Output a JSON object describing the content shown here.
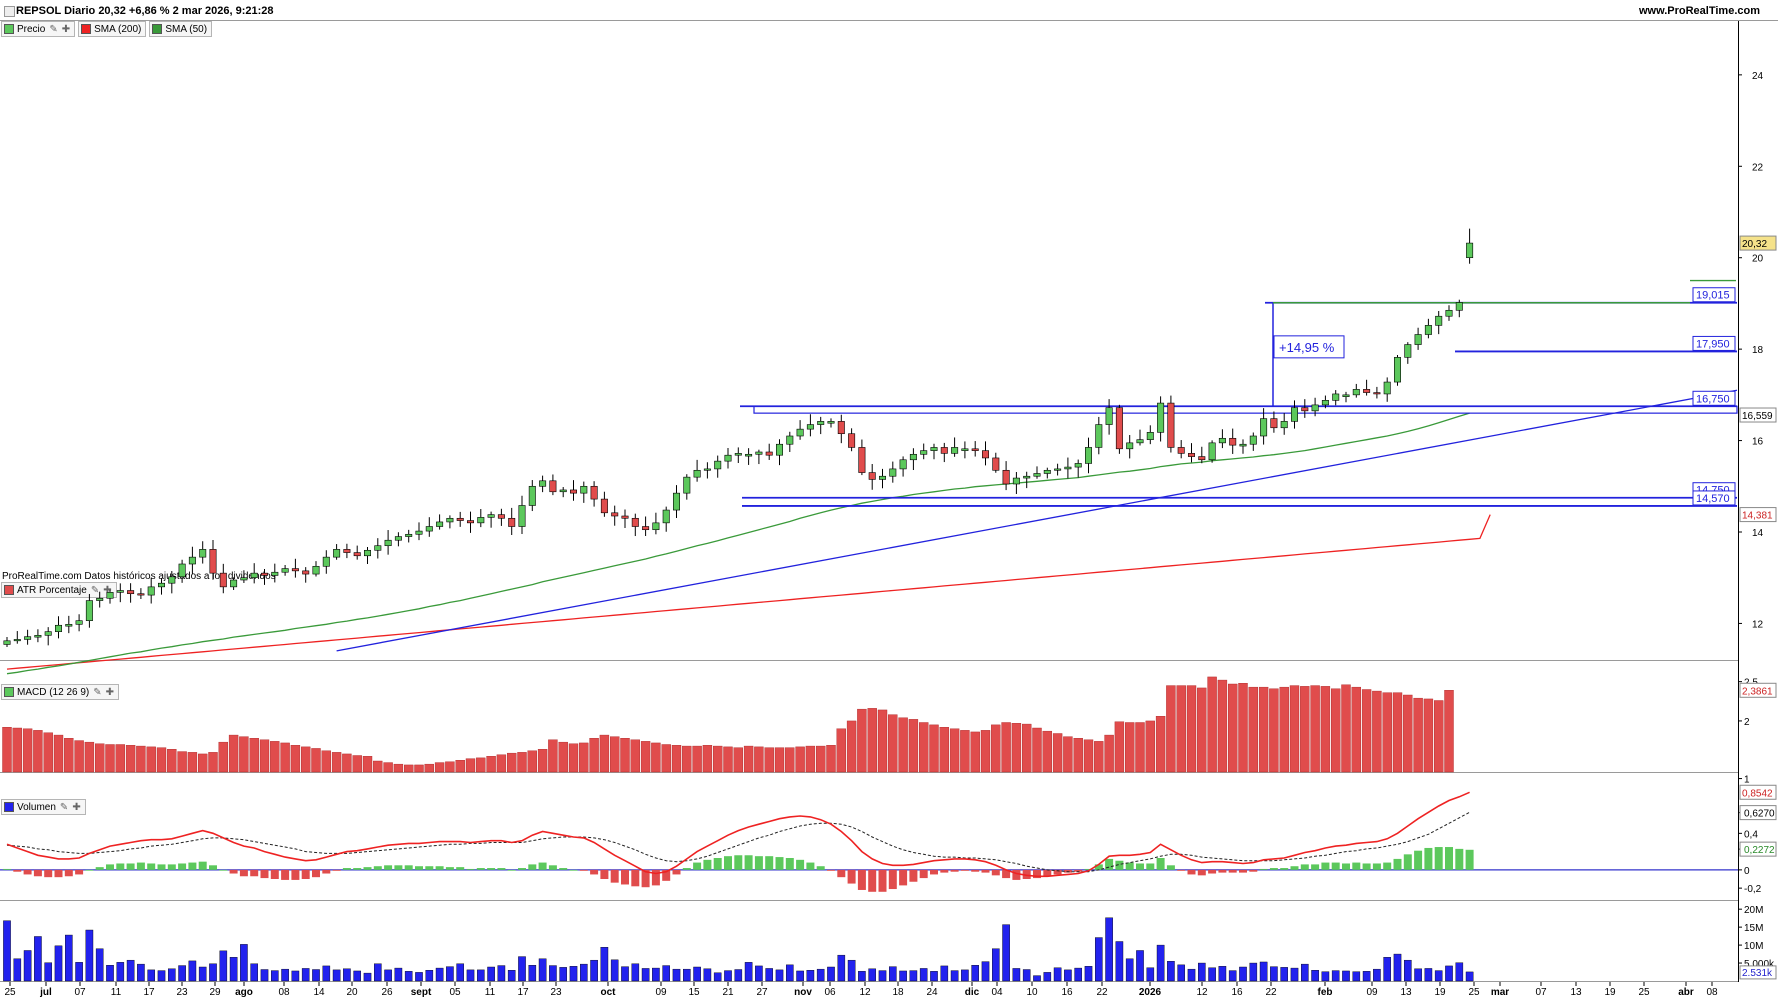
{
  "header": {
    "title": "REPSOL Diario 20,32 +6,86 % 2 mar 2026, 9:21:28",
    "brand": "www.ProRealTime.com"
  },
  "legend": {
    "price": "Precio",
    "sma200": "SMA (200)",
    "sma50": "SMA (50)"
  },
  "note": "ProRealTime.com Datos históricos ajustados a los dividendos",
  "panels": {
    "atr_label": "ATR Porcentaje",
    "macd_label": "MACD (12 26 9)",
    "volume_label": "Volumen"
  },
  "colors": {
    "up": "#5cc85c",
    "down": "#e04c4c",
    "sma200": "#ee2222",
    "sma50": "#3a9a3a",
    "lines": "#2222dd",
    "volume": "#2222ee",
    "macd": "#ee2222"
  },
  "annotation": {
    "pct_change": "+14,95 %"
  },
  "chart_data": {
    "type": "candlestick",
    "symbol": "REPSOL",
    "period": "Diario",
    "price_axis": {
      "ticks": [
        "24",
        "22",
        "20",
        "18",
        "16",
        "14",
        "12"
      ],
      "range": [
        11.2,
        25.2
      ]
    },
    "x_tick_labels": [
      "25",
      "jul",
      "07",
      "11",
      "17",
      "23",
      "29",
      "ago",
      "08",
      "14",
      "20",
      "26",
      "sept",
      "05",
      "11",
      "17",
      "23",
      "oct",
      "09",
      "15",
      "21",
      "27",
      "nov",
      "06",
      "12",
      "18",
      "24",
      "dic",
      "04",
      "10",
      "16",
      "22",
      "2026",
      "12",
      "16",
      "22",
      "feb",
      "09",
      "13",
      "19",
      "25",
      "mar",
      "07",
      "13",
      "19",
      "25",
      "abr",
      "08"
    ],
    "closes": [
      11.62,
      11.65,
      11.71,
      11.74,
      11.82,
      11.96,
      11.98,
      12.06,
      12.5,
      12.55,
      12.68,
      12.72,
      12.65,
      12.62,
      12.8,
      12.88,
      13.02,
      13.3,
      13.45,
      13.62,
      13.1,
      12.8,
      12.95,
      13.0,
      13.1,
      13.05,
      13.12,
      13.2,
      13.15,
      13.08,
      13.25,
      13.45,
      13.62,
      13.55,
      13.48,
      13.6,
      13.7,
      13.82,
      13.9,
      13.95,
      14.02,
      14.12,
      14.22,
      14.3,
      14.25,
      14.2,
      14.32,
      14.38,
      14.3,
      14.12,
      14.58,
      15.0,
      15.12,
      14.88,
      14.92,
      14.85,
      15.0,
      14.72,
      14.42,
      14.35,
      14.3,
      14.12,
      14.05,
      14.2,
      14.48,
      14.85,
      15.2,
      15.35,
      15.38,
      15.55,
      15.68,
      15.72,
      15.7,
      15.75,
      15.68,
      15.92,
      16.1,
      16.25,
      16.35,
      16.42,
      16.42,
      16.15,
      15.85,
      15.3,
      15.15,
      15.22,
      15.38,
      15.58,
      15.7,
      15.78,
      15.85,
      15.72,
      15.85,
      15.82,
      15.78,
      15.62,
      15.35,
      15.05,
      15.18,
      15.22,
      15.28,
      15.35,
      15.38,
      15.42,
      15.5,
      15.85,
      16.35,
      16.72,
      15.82,
      15.95,
      16.02,
      16.18,
      16.82,
      15.85,
      15.72,
      15.65,
      15.58,
      15.95,
      16.05,
      15.9,
      15.92,
      16.1,
      16.48,
      16.28,
      16.42,
      16.72,
      16.65,
      16.78,
      16.88,
      17.02,
      17.0,
      17.12,
      17.05,
      17.02,
      17.28,
      17.82,
      18.1,
      18.32,
      18.52,
      18.72,
      18.85,
      19.02,
      20.32
    ],
    "sma50": [
      10.9,
      10.93,
      10.97,
      11.0,
      11.04,
      11.07,
      11.11,
      11.15,
      11.19,
      11.23,
      11.27,
      11.31,
      11.35,
      11.38,
      11.42,
      11.46,
      11.49,
      11.53,
      11.56,
      11.6,
      11.63,
      11.66,
      11.7,
      11.73,
      11.76,
      11.79,
      11.82,
      11.85,
      11.89,
      11.92,
      11.95,
      11.98,
      12.02,
      12.05,
      12.09,
      12.12,
      12.16,
      12.2,
      12.24,
      12.28,
      12.32,
      12.37,
      12.41,
      12.46,
      12.5,
      12.55,
      12.6,
      12.65,
      12.7,
      12.75,
      12.8,
      12.85,
      12.91,
      12.96,
      13.01,
      13.06,
      13.11,
      13.16,
      13.21,
      13.26,
      13.31,
      13.36,
      13.41,
      13.47,
      13.52,
      13.58,
      13.64,
      13.7,
      13.75,
      13.81,
      13.87,
      13.93,
      13.99,
      14.05,
      14.11,
      14.17,
      14.23,
      14.3,
      14.36,
      14.42,
      14.48,
      14.53,
      14.58,
      14.63,
      14.67,
      14.71,
      14.75,
      14.78,
      14.82,
      14.85,
      14.88,
      14.91,
      14.94,
      14.96,
      14.99,
      15.01,
      15.03,
      15.05,
      15.07,
      15.09,
      15.11,
      15.13,
      15.15,
      15.17,
      15.19,
      15.22,
      15.25,
      15.28,
      15.31,
      15.33,
      15.36,
      15.39,
      15.43,
      15.46,
      15.49,
      15.51,
      15.53,
      15.56,
      15.58,
      15.6,
      15.62,
      15.64,
      15.67,
      15.69,
      15.72,
      15.75,
      15.78,
      15.82,
      15.86,
      15.9,
      15.94,
      15.98,
      16.02,
      16.06,
      16.1,
      16.15,
      16.2,
      16.26,
      16.32,
      16.39,
      16.46,
      16.53,
      16.6
    ],
    "sma200": [
      11.0,
      11.02,
      11.04,
      11.06,
      11.08,
      11.1,
      11.12,
      11.14,
      11.16,
      11.18,
      11.2,
      11.22,
      11.24,
      11.26,
      11.28,
      11.3,
      11.32,
      11.34,
      11.36,
      11.38,
      11.4,
      11.42,
      11.44,
      11.46,
      11.48,
      11.5,
      11.52,
      11.54,
      11.56,
      11.58,
      11.6,
      11.62,
      11.64,
      11.66,
      11.68,
      11.7,
      11.72,
      11.74,
      11.76,
      11.78,
      11.8,
      11.82,
      11.84,
      11.86,
      11.88,
      11.9,
      11.92,
      11.94,
      11.96,
      11.98,
      12.0,
      12.02,
      12.04,
      12.06,
      12.08,
      12.1,
      12.12,
      12.14,
      12.16,
      12.18,
      12.2,
      12.22,
      12.24,
      12.26,
      12.28,
      12.3,
      12.32,
      12.34,
      12.36,
      12.38,
      12.4,
      12.42,
      12.44,
      12.46,
      12.48,
      12.5,
      12.52,
      12.54,
      12.56,
      12.58,
      12.6,
      12.62,
      12.64,
      12.66,
      12.68,
      12.7,
      12.72,
      12.74,
      12.76,
      12.78,
      12.8,
      12.82,
      12.84,
      12.86,
      12.88,
      12.9,
      12.92,
      12.94,
      12.96,
      12.98,
      13.0,
      13.02,
      13.04,
      13.06,
      13.08,
      13.1,
      13.12,
      13.14,
      13.16,
      13.18,
      13.2,
      13.22,
      13.24,
      13.26,
      13.28,
      13.3,
      13.32,
      13.34,
      13.36,
      13.38,
      13.4,
      13.42,
      13.44,
      13.46,
      13.48,
      13.5,
      13.52,
      13.54,
      13.56,
      13.58,
      13.6,
      13.62,
      13.64,
      13.66,
      13.68,
      13.7,
      13.72,
      13.74,
      13.76,
      13.78,
      13.8,
      13.82,
      13.84,
      13.86,
      14.381
    ],
    "horizontal_levels": [
      {
        "value": 19.015,
        "label": "19,015"
      },
      {
        "value": 17.95,
        "label": "17,950"
      },
      {
        "value": 16.75,
        "label": "16,750"
      },
      {
        "value": 14.75,
        "label": "14,750"
      },
      {
        "value": 14.57,
        "label": "14,570"
      }
    ],
    "resistance_box": [
      16.6,
      16.75
    ],
    "trendline": [
      [
        11.4,
        17.1
      ]
    ],
    "price_tags": [
      {
        "value": 20.32,
        "label": "20,32",
        "color": "#f5e28a"
      },
      {
        "value": 16.559,
        "label": "16,559",
        "color": "#ffffff"
      },
      {
        "value": 14.381,
        "label": "14,381",
        "color": "#ffffff"
      }
    ],
    "atr": {
      "axis_ticks": [
        "2,5",
        "2"
      ],
      "range": [
        1.35,
        2.75
      ],
      "last_label": "2,3861",
      "values": [
        1.92,
        1.91,
        1.9,
        1.88,
        1.85,
        1.82,
        1.78,
        1.75,
        1.73,
        1.71,
        1.7,
        1.7,
        1.69,
        1.68,
        1.67,
        1.66,
        1.64,
        1.61,
        1.6,
        1.58,
        1.6,
        1.73,
        1.82,
        1.8,
        1.78,
        1.76,
        1.74,
        1.72,
        1.69,
        1.67,
        1.65,
        1.62,
        1.6,
        1.58,
        1.56,
        1.55,
        1.49,
        1.47,
        1.45,
        1.44,
        1.44,
        1.45,
        1.47,
        1.48,
        1.5,
        1.52,
        1.53,
        1.55,
        1.57,
        1.59,
        1.6,
        1.62,
        1.64,
        1.76,
        1.73,
        1.71,
        1.72,
        1.78,
        1.82,
        1.8,
        1.78,
        1.76,
        1.74,
        1.72,
        1.7,
        1.69,
        1.68,
        1.68,
        1.69,
        1.68,
        1.67,
        1.66,
        1.68,
        1.67,
        1.66,
        1.66,
        1.66,
        1.67,
        1.68,
        1.68,
        1.69,
        1.9,
        2.0,
        2.15,
        2.16,
        2.14,
        2.08,
        2.04,
        2.02,
        1.98,
        1.95,
        1.92,
        1.9,
        1.88,
        1.86,
        1.88,
        1.95,
        1.98,
        1.97,
        1.96,
        1.91,
        1.87,
        1.84,
        1.8,
        1.78,
        1.76,
        1.74,
        1.82,
        1.99,
        1.98,
        1.98,
        2.0,
        2.06,
        2.45,
        2.45,
        2.45,
        2.42,
        2.56,
        2.52,
        2.47,
        2.48,
        2.43,
        2.43,
        2.41,
        2.43,
        2.45,
        2.44,
        2.45,
        2.44,
        2.41,
        2.46,
        2.43,
        2.4,
        2.38,
        2.36,
        2.36,
        2.33,
        2.29,
        2.28,
        2.26,
        2.39
      ]
    },
    "macd": {
      "axis_ticks": [
        "1",
        "0,6270",
        "0,4",
        "0,2272",
        "0",
        "-0,2"
      ],
      "range": [
        -0.33,
        1.05
      ],
      "last_values": {
        "macd": "0,8542",
        "signal": "0,6270",
        "histogram": "0,2272"
      },
      "macd_line": [
        0.28,
        0.24,
        0.2,
        0.16,
        0.14,
        0.12,
        0.12,
        0.13,
        0.18,
        0.22,
        0.26,
        0.28,
        0.3,
        0.32,
        0.33,
        0.33,
        0.34,
        0.37,
        0.4,
        0.43,
        0.4,
        0.35,
        0.3,
        0.26,
        0.24,
        0.2,
        0.17,
        0.14,
        0.12,
        0.1,
        0.11,
        0.14,
        0.17,
        0.2,
        0.21,
        0.23,
        0.25,
        0.27,
        0.28,
        0.29,
        0.29,
        0.3,
        0.31,
        0.31,
        0.31,
        0.3,
        0.31,
        0.32,
        0.32,
        0.3,
        0.32,
        0.38,
        0.42,
        0.4,
        0.38,
        0.36,
        0.35,
        0.3,
        0.23,
        0.16,
        0.1,
        0.04,
        -0.02,
        -0.04,
        -0.02,
        0.04,
        0.12,
        0.2,
        0.26,
        0.32,
        0.38,
        0.43,
        0.47,
        0.5,
        0.53,
        0.56,
        0.58,
        0.59,
        0.58,
        0.55,
        0.5,
        0.42,
        0.32,
        0.2,
        0.12,
        0.07,
        0.05,
        0.05,
        0.06,
        0.08,
        0.1,
        0.11,
        0.12,
        0.12,
        0.11,
        0.09,
        0.05,
        0.0,
        -0.04,
        -0.06,
        -0.07,
        -0.07,
        -0.06,
        -0.05,
        -0.04,
        -0.01,
        0.06,
        0.15,
        0.16,
        0.16,
        0.17,
        0.19,
        0.28,
        0.22,
        0.16,
        0.11,
        0.08,
        0.09,
        0.09,
        0.08,
        0.07,
        0.08,
        0.11,
        0.12,
        0.13,
        0.16,
        0.19,
        0.21,
        0.24,
        0.26,
        0.27,
        0.29,
        0.3,
        0.31,
        0.34,
        0.4,
        0.48,
        0.56,
        0.63,
        0.7,
        0.76,
        0.8,
        0.85
      ],
      "signal_line": [
        0.27,
        0.26,
        0.25,
        0.23,
        0.22,
        0.2,
        0.19,
        0.18,
        0.18,
        0.19,
        0.2,
        0.21,
        0.23,
        0.24,
        0.26,
        0.27,
        0.28,
        0.3,
        0.32,
        0.34,
        0.35,
        0.35,
        0.34,
        0.33,
        0.31,
        0.29,
        0.27,
        0.25,
        0.23,
        0.2,
        0.19,
        0.18,
        0.18,
        0.18,
        0.19,
        0.2,
        0.21,
        0.22,
        0.23,
        0.24,
        0.25,
        0.26,
        0.27,
        0.28,
        0.28,
        0.29,
        0.29,
        0.3,
        0.3,
        0.3,
        0.3,
        0.32,
        0.34,
        0.35,
        0.36,
        0.36,
        0.36,
        0.35,
        0.33,
        0.3,
        0.26,
        0.22,
        0.17,
        0.13,
        0.1,
        0.09,
        0.1,
        0.12,
        0.15,
        0.19,
        0.23,
        0.27,
        0.31,
        0.35,
        0.38,
        0.42,
        0.45,
        0.48,
        0.5,
        0.51,
        0.51,
        0.5,
        0.47,
        0.42,
        0.36,
        0.31,
        0.26,
        0.22,
        0.19,
        0.17,
        0.15,
        0.14,
        0.14,
        0.13,
        0.13,
        0.12,
        0.11,
        0.09,
        0.07,
        0.04,
        0.02,
        0.0,
        -0.01,
        -0.02,
        -0.02,
        -0.02,
        0.0,
        0.03,
        0.06,
        0.08,
        0.1,
        0.12,
        0.15,
        0.17,
        0.17,
        0.16,
        0.14,
        0.13,
        0.12,
        0.11,
        0.1,
        0.1,
        0.1,
        0.1,
        0.11,
        0.12,
        0.13,
        0.15,
        0.16,
        0.18,
        0.2,
        0.21,
        0.23,
        0.24,
        0.26,
        0.28,
        0.31,
        0.35,
        0.39,
        0.45,
        0.51,
        0.57,
        0.63
      ]
    },
    "volume": {
      "axis_ticks": [
        "20M",
        "15M",
        "10M",
        "5.000k"
      ],
      "range": [
        0,
        22000
      ],
      "last_label": "2.531k",
      "values": [
        16800,
        6200,
        8500,
        12400,
        5100,
        9800,
        12800,
        5200,
        14200,
        9000,
        4400,
        5200,
        5800,
        4700,
        3100,
        2900,
        3400,
        4300,
        5600,
        3900,
        4800,
        8400,
        6600,
        10200,
        4800,
        3200,
        2900,
        3300,
        2800,
        3500,
        3200,
        4200,
        3100,
        3400,
        2800,
        2200,
        4800,
        3100,
        3600,
        2700,
        2400,
        3000,
        3600,
        4000,
        4800,
        3100,
        3100,
        3900,
        4300,
        3000,
        6800,
        4400,
        6200,
        4300,
        3800,
        4100,
        4700,
        5800,
        9400,
        5900,
        4000,
        4800,
        3500,
        3600,
        4300,
        3300,
        3300,
        3900,
        3400,
        2300,
        2900,
        3200,
        5200,
        4200,
        3500,
        3100,
        4500,
        2800,
        3000,
        3300,
        3900,
        7200,
        5800,
        2700,
        3400,
        2900,
        4000,
        2800,
        2900,
        3500,
        2700,
        4200,
        2900,
        3100,
        4400,
        5400,
        9000,
        15700,
        3500,
        3200,
        1500,
        2400,
        3700,
        3100,
        3600,
        4100,
        12100,
        17600,
        11000,
        6200,
        8500,
        3700,
        10000,
        5500,
        4500,
        3300,
        5000,
        3700,
        4100,
        2900,
        3900,
        5000,
        5300,
        4000,
        3800,
        3600,
        4700,
        3000,
        2600,
        2900,
        2800,
        2600,
        2700,
        3300,
        6600,
        7500,
        5800,
        3400,
        3500,
        2900,
        4200,
        5100,
        2531
      ]
    }
  }
}
